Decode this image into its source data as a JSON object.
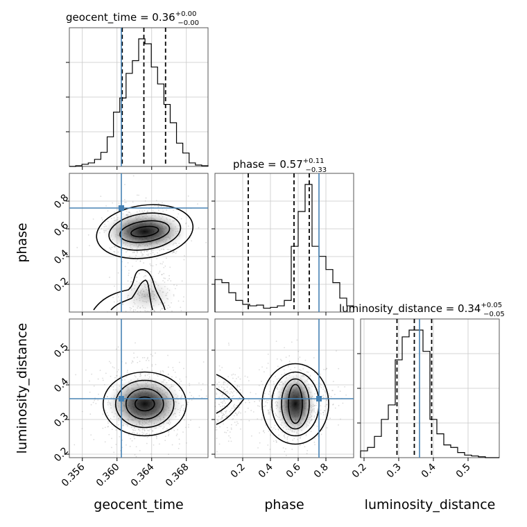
{
  "chart_data": {
    "type": "corner",
    "parameters": [
      "geocent_time",
      "phase",
      "luminosity_distance"
    ],
    "truths": {
      "geocent_time": 0.3605,
      "phase": 0.75,
      "luminosity_distance": 0.36
    },
    "colors": {
      "truth": "#4682b4",
      "hist": "#000000",
      "grid": "#c8c8c8",
      "frame": "#555555"
    },
    "panels": {
      "geocent_time_hist": {
        "title_main": "geocent_time = 0.36",
        "title_sup": "+0.00",
        "title_sub": "−0.00",
        "xlim": [
          0.3545,
          0.3705
        ],
        "quantiles": [
          0.3606,
          0.3631,
          0.3656
        ],
        "hist_values": [
          0,
          1,
          3,
          5,
          10,
          20,
          42,
          77,
          97,
          132,
          150,
          181,
          174,
          141,
          117,
          88,
          62,
          33,
          19,
          5,
          2,
          1
        ]
      },
      "phase_hist": {
        "title_main": "phase = 0.57",
        "title_sup": "+0.11",
        "title_sub": "−0.33",
        "xlim": [
          0.0,
          1.0
        ],
        "quantiles": [
          0.24,
          0.57,
          0.68
        ],
        "hist_values": [
          42,
          38,
          25,
          15,
          10,
          8,
          9,
          5,
          6,
          8,
          15,
          85,
          130,
          165,
          85,
          72,
          55,
          38,
          18,
          8
        ]
      },
      "luminosity_distance_hist": {
        "title_main": "luminosity_distance = 0.34",
        "title_sup": "+0.05",
        "title_sub": "−0.05",
        "xlim": [
          0.19,
          0.59
        ],
        "quantiles": [
          0.295,
          0.345,
          0.395
        ],
        "hist_values": [
          8,
          12,
          25,
          45,
          62,
          115,
          142,
          150,
          150,
          125,
          45,
          28,
          15,
          12,
          6,
          3,
          2,
          1,
          0,
          0
        ]
      },
      "phase_vs_geocent_time": {
        "xlim": [
          0.3545,
          0.3705
        ],
        "ylim": [
          0.0,
          1.0
        ]
      },
      "luminosity_distance_vs_geocent_time": {
        "xlim": [
          0.3545,
          0.3705
        ],
        "ylim": [
          0.19,
          0.59
        ]
      },
      "luminosity_distance_vs_phase": {
        "xlim": [
          0.0,
          1.0
        ],
        "ylim": [
          0.19,
          0.59
        ]
      }
    },
    "ticks": {
      "geocent_time": [
        "0.356",
        "0.360",
        "0.364",
        "0.368"
      ],
      "geocent_time_values": [
        0.356,
        0.36,
        0.364,
        0.368
      ],
      "phase": [
        "0.2",
        "0.4",
        "0.6",
        "0.8"
      ],
      "phase_values": [
        0.2,
        0.4,
        0.6,
        0.8
      ],
      "luminosity_distance": [
        "0.2",
        "0.3",
        "0.4",
        "0.5"
      ],
      "luminosity_distance_values": [
        0.2,
        0.3,
        0.4,
        0.5
      ]
    },
    "labels": {
      "x0": "geocent_time",
      "x1": "phase",
      "x2": "luminosity_distance",
      "y1": "phase",
      "y2": "luminosity_distance"
    },
    "grid": true
  }
}
